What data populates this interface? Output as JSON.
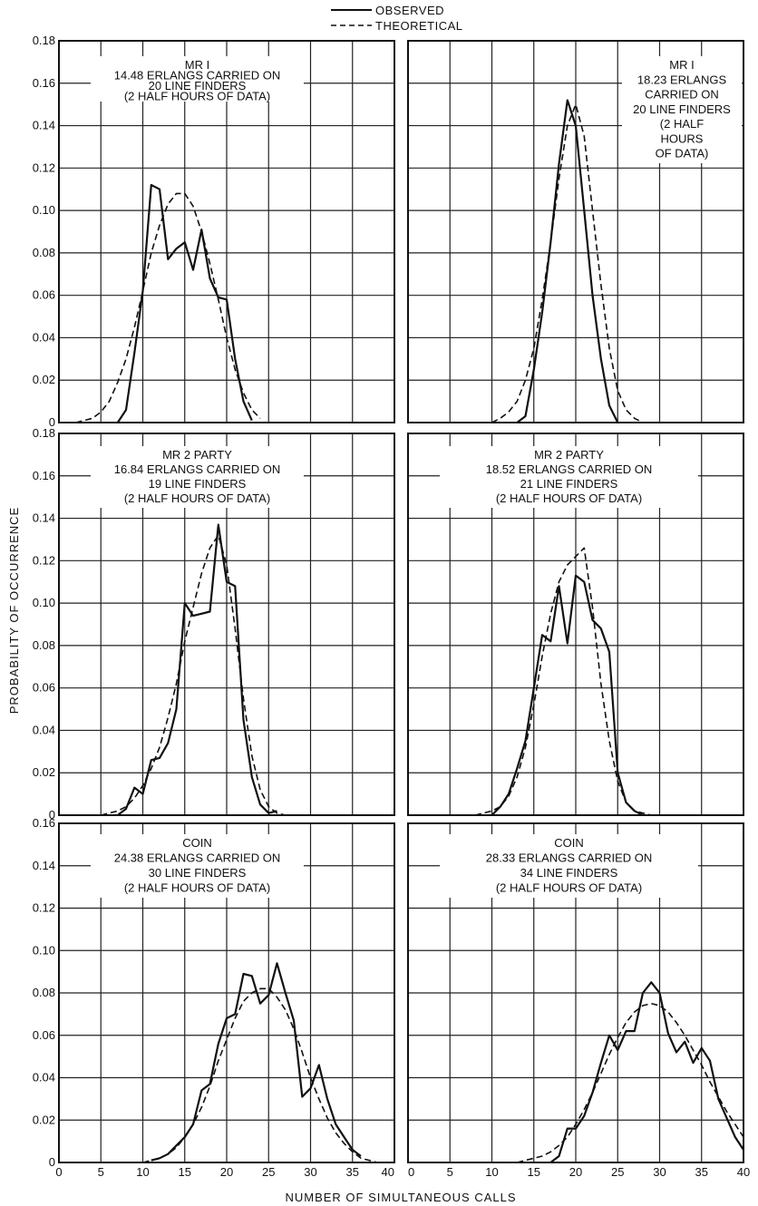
{
  "legend": {
    "observed": "OBSERVED",
    "theoretical": "THEORETICAL"
  },
  "ylabel": "PROBABILITY OF OCCURRENCE",
  "xlabel": "NUMBER OF SIMULTANEOUS CALLS",
  "chart_data": [
    {
      "type": "line",
      "annotation": [
        "MR I",
        "14.48 ERLANGS CARRIED ON",
        "20 LINE FINDERS",
        "(2 HALF HOURS OF DATA)"
      ],
      "xlim": [
        0,
        40
      ],
      "ylim": [
        0,
        0.18
      ],
      "xticks": [
        0,
        5,
        10,
        15,
        20,
        25,
        30,
        35,
        40
      ],
      "xtick_labels": [],
      "yticks": [
        0,
        0.02,
        0.04,
        0.06,
        0.08,
        0.1,
        0.12,
        0.14,
        0.16,
        0.18
      ],
      "ytick_labels": [
        "0",
        "0.02",
        "0.04",
        "0.06",
        "0.08",
        "0.10",
        "0.12",
        "0.14",
        "0.16",
        "0.18"
      ],
      "grid": true,
      "series": [
        {
          "name": "OBSERVED",
          "style": "solid",
          "x": [
            7,
            8,
            9,
            10,
            11,
            12,
            13,
            14,
            15,
            16,
            17,
            18,
            19,
            20,
            21,
            22,
            23
          ],
          "y": [
            0.0,
            0.006,
            0.033,
            0.062,
            0.112,
            0.11,
            0.077,
            0.082,
            0.085,
            0.072,
            0.091,
            0.068,
            0.059,
            0.058,
            0.03,
            0.01,
            0.001
          ]
        },
        {
          "name": "THEORETICAL",
          "style": "dashed",
          "x": [
            2,
            3,
            4,
            5,
            6,
            7,
            8,
            9,
            10,
            11,
            12,
            13,
            14,
            15,
            16,
            17,
            18,
            19,
            20,
            21,
            22,
            23,
            24
          ],
          "y": [
            0.0,
            0.001,
            0.002,
            0.005,
            0.01,
            0.019,
            0.03,
            0.045,
            0.062,
            0.08,
            0.093,
            0.103,
            0.108,
            0.108,
            0.102,
            0.09,
            0.075,
            0.058,
            0.04,
            0.025,
            0.014,
            0.006,
            0.002
          ]
        }
      ]
    },
    {
      "type": "line",
      "annotation": [
        "MR I",
        "18.23 ERLANGS",
        "CARRIED ON",
        "20 LINE FINDERS",
        "(2 HALF",
        "HOURS",
        "OF DATA)"
      ],
      "xlim": [
        0,
        40
      ],
      "ylim": [
        0,
        0.18
      ],
      "xticks": [
        0,
        5,
        10,
        15,
        20,
        25,
        30,
        35,
        40
      ],
      "xtick_labels": [],
      "yticks": [
        0,
        0.02,
        0.04,
        0.06,
        0.08,
        0.1,
        0.12,
        0.14,
        0.16,
        0.18
      ],
      "ytick_labels": [],
      "grid": true,
      "series": [
        {
          "name": "OBSERVED",
          "style": "solid",
          "x": [
            13,
            14,
            15,
            16,
            17,
            18,
            19,
            20,
            21,
            22,
            23,
            24,
            25
          ],
          "y": [
            0.0,
            0.003,
            0.025,
            0.052,
            0.085,
            0.122,
            0.152,
            0.14,
            0.1,
            0.06,
            0.03,
            0.008,
            0.0
          ]
        },
        {
          "name": "THEORETICAL",
          "style": "dashed",
          "x": [
            10,
            11,
            12,
            13,
            14,
            15,
            16,
            17,
            18,
            19,
            20,
            21,
            22,
            23,
            24,
            25,
            26,
            27,
            28
          ],
          "y": [
            0.0,
            0.002,
            0.005,
            0.01,
            0.02,
            0.035,
            0.058,
            0.085,
            0.115,
            0.14,
            0.15,
            0.135,
            0.1,
            0.065,
            0.035,
            0.015,
            0.006,
            0.002,
            0.0
          ]
        }
      ]
    },
    {
      "type": "line",
      "annotation": [
        "MR 2 PARTY",
        "16.84 ERLANGS CARRIED ON",
        "19 LINE FINDERS",
        "(2 HALF HOURS OF DATA)"
      ],
      "xlim": [
        0,
        40
      ],
      "ylim": [
        0,
        0.18
      ],
      "xticks": [
        0,
        5,
        10,
        15,
        20,
        25,
        30,
        35,
        40
      ],
      "xtick_labels": [],
      "yticks": [
        0,
        0.02,
        0.04,
        0.06,
        0.08,
        0.1,
        0.12,
        0.14,
        0.16,
        0.18
      ],
      "ytick_labels": [
        "0",
        "0.02",
        "0.04",
        "0.06",
        "0.08",
        "0.10",
        "0.12",
        "0.14",
        "0.16",
        "0.18"
      ],
      "grid": true,
      "series": [
        {
          "name": "OBSERVED",
          "style": "solid",
          "x": [
            7,
            8,
            9,
            10,
            11,
            12,
            13,
            14,
            15,
            16,
            17,
            18,
            19,
            20,
            21,
            22,
            23,
            24,
            25,
            26
          ],
          "y": [
            0.0,
            0.003,
            0.013,
            0.01,
            0.026,
            0.027,
            0.034,
            0.05,
            0.1,
            0.094,
            0.095,
            0.096,
            0.137,
            0.11,
            0.108,
            0.045,
            0.018,
            0.005,
            0.001,
            0.002
          ]
        },
        {
          "name": "THEORETICAL",
          "style": "dashed",
          "x": [
            5,
            6,
            7,
            8,
            9,
            10,
            11,
            12,
            13,
            14,
            15,
            16,
            17,
            18,
            19,
            20,
            21,
            22,
            23,
            24,
            25,
            26,
            27
          ],
          "y": [
            0.0,
            0.001,
            0.002,
            0.004,
            0.008,
            0.014,
            0.022,
            0.032,
            0.046,
            0.062,
            0.082,
            0.098,
            0.114,
            0.126,
            0.132,
            0.118,
            0.088,
            0.055,
            0.028,
            0.012,
            0.004,
            0.001,
            0.0
          ]
        }
      ]
    },
    {
      "type": "line",
      "annotation": [
        "MR 2 PARTY",
        "18.52 ERLANGS CARRIED ON",
        "21 LINE FINDERS",
        "(2 HALF HOURS OF DATA)"
      ],
      "xlim": [
        0,
        40
      ],
      "ylim": [
        0,
        0.18
      ],
      "xticks": [
        0,
        5,
        10,
        15,
        20,
        25,
        30,
        35,
        40
      ],
      "xtick_labels": [],
      "yticks": [
        0,
        0.02,
        0.04,
        0.06,
        0.08,
        0.1,
        0.12,
        0.14,
        0.16,
        0.18
      ],
      "ytick_labels": [],
      "grid": true,
      "series": [
        {
          "name": "OBSERVED",
          "style": "solid",
          "x": [
            10,
            11,
            12,
            13,
            14,
            15,
            16,
            17,
            18,
            19,
            20,
            21,
            22,
            23,
            24,
            25,
            26,
            27,
            28
          ],
          "y": [
            0.0,
            0.004,
            0.01,
            0.022,
            0.035,
            0.06,
            0.085,
            0.082,
            0.108,
            0.081,
            0.113,
            0.11,
            0.092,
            0.088,
            0.077,
            0.02,
            0.006,
            0.002,
            0.0
          ]
        },
        {
          "name": "THEORETICAL",
          "style": "dashed",
          "x": [
            8,
            9,
            10,
            11,
            12,
            13,
            14,
            15,
            16,
            17,
            18,
            19,
            20,
            21,
            22,
            23,
            24,
            25,
            26,
            27,
            28,
            29
          ],
          "y": [
            0.0,
            0.001,
            0.002,
            0.004,
            0.009,
            0.018,
            0.032,
            0.052,
            0.075,
            0.095,
            0.11,
            0.118,
            0.122,
            0.126,
            0.098,
            0.062,
            0.035,
            0.016,
            0.006,
            0.002,
            0.001,
            0.0
          ]
        }
      ]
    },
    {
      "type": "line",
      "annotation": [
        "COIN",
        "24.38 ERLANGS CARRIED ON",
        "30 LINE FINDERS",
        "(2 HALF HOURS OF DATA)"
      ],
      "xlim": [
        0,
        40
      ],
      "ylim": [
        0,
        0.16
      ],
      "xticks": [
        0,
        5,
        10,
        15,
        20,
        25,
        30,
        35,
        40
      ],
      "xtick_labels": [
        "0",
        "5",
        "10",
        "15",
        "20",
        "25",
        "30",
        "35",
        "40"
      ],
      "yticks": [
        0,
        0.02,
        0.04,
        0.06,
        0.08,
        0.1,
        0.12,
        0.14,
        0.16
      ],
      "ytick_labels": [
        "0",
        "0.02",
        "0.04",
        "0.06",
        "0.08",
        "0.10",
        "0.12",
        "0.14",
        "0.16"
      ],
      "grid": true,
      "series": [
        {
          "name": "OBSERVED",
          "style": "solid",
          "x": [
            11,
            12,
            13,
            14,
            15,
            16,
            17,
            18,
            19,
            20,
            21,
            22,
            23,
            24,
            25,
            26,
            27,
            28,
            29,
            30,
            31,
            32,
            33,
            34,
            35,
            36
          ],
          "y": [
            0.001,
            0.002,
            0.004,
            0.008,
            0.012,
            0.018,
            0.034,
            0.037,
            0.056,
            0.068,
            0.07,
            0.089,
            0.088,
            0.075,
            0.079,
            0.094,
            0.08,
            0.067,
            0.031,
            0.035,
            0.046,
            0.03,
            0.018,
            0.012,
            0.006,
            0.003
          ]
        },
        {
          "name": "THEORETICAL",
          "style": "dashed",
          "x": [
            10,
            11,
            12,
            13,
            14,
            15,
            16,
            17,
            18,
            19,
            20,
            21,
            22,
            23,
            24,
            25,
            26,
            27,
            28,
            29,
            30,
            31,
            32,
            33,
            34,
            35,
            36,
            37,
            38
          ],
          "y": [
            0.0,
            0.001,
            0.002,
            0.004,
            0.007,
            0.012,
            0.018,
            0.026,
            0.036,
            0.048,
            0.058,
            0.068,
            0.076,
            0.08,
            0.082,
            0.082,
            0.078,
            0.072,
            0.063,
            0.052,
            0.04,
            0.03,
            0.021,
            0.014,
            0.009,
            0.005,
            0.002,
            0.001,
            0.0
          ]
        }
      ]
    },
    {
      "type": "line",
      "annotation": [
        "COIN",
        "28.33 ERLANGS CARRIED ON",
        "34 LINE FINDERS",
        "(2 HALF HOURS OF DATA)"
      ],
      "xlim": [
        0,
        40
      ],
      "ylim": [
        0,
        0.16
      ],
      "xticks": [
        0,
        5,
        10,
        15,
        20,
        25,
        30,
        35,
        40
      ],
      "xtick_labels": [
        "0",
        "5",
        "10",
        "15",
        "20",
        "25",
        "30",
        "35",
        "40"
      ],
      "yticks": [
        0,
        0.02,
        0.04,
        0.06,
        0.08,
        0.1,
        0.12,
        0.14,
        0.16
      ],
      "ytick_labels": [],
      "grid": true,
      "series": [
        {
          "name": "OBSERVED",
          "style": "solid",
          "x": [
            17,
            18,
            19,
            20,
            21,
            22,
            23,
            24,
            25,
            26,
            27,
            28,
            29,
            30,
            31,
            32,
            33,
            34,
            35,
            36,
            37,
            38,
            39,
            40
          ],
          "y": [
            0.0,
            0.003,
            0.016,
            0.016,
            0.022,
            0.033,
            0.047,
            0.06,
            0.053,
            0.062,
            0.062,
            0.08,
            0.085,
            0.08,
            0.061,
            0.052,
            0.057,
            0.047,
            0.054,
            0.048,
            0.03,
            0.021,
            0.012,
            0.006
          ]
        },
        {
          "name": "THEORETICAL",
          "style": "dashed",
          "x": [
            13,
            14,
            15,
            16,
            17,
            18,
            19,
            20,
            21,
            22,
            23,
            24,
            25,
            26,
            27,
            28,
            29,
            30,
            31,
            32,
            33,
            34,
            35,
            36,
            37,
            38,
            39,
            40
          ],
          "y": [
            0.0,
            0.001,
            0.002,
            0.003,
            0.005,
            0.008,
            0.012,
            0.018,
            0.025,
            0.033,
            0.042,
            0.051,
            0.059,
            0.066,
            0.071,
            0.074,
            0.075,
            0.074,
            0.071,
            0.066,
            0.06,
            0.053,
            0.046,
            0.038,
            0.031,
            0.024,
            0.018,
            0.012
          ]
        }
      ]
    }
  ]
}
